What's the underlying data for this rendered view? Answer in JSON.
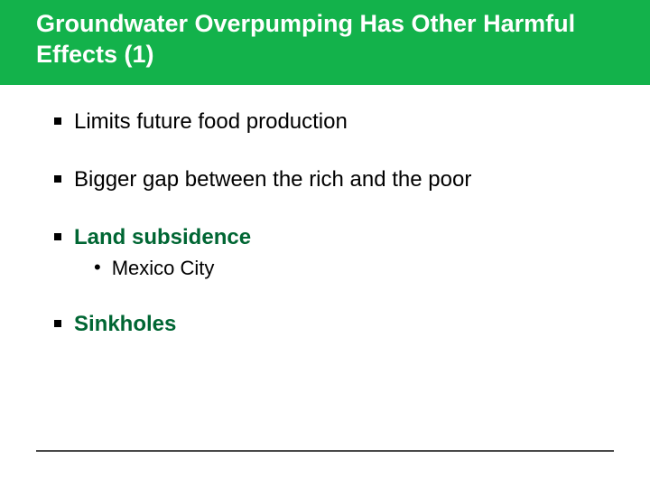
{
  "colors": {
    "title_bg": "#13b24b",
    "title_text": "#ffffff",
    "bullet": "#000000",
    "accent": "#006633",
    "footer_line": "#4a4a4a",
    "background": "#ffffff"
  },
  "title": "Groundwater Overpumping Has Other Harmful Effects (1)",
  "fonts": {
    "title_size": 27,
    "bullet_size": 24,
    "sub_size": 22
  },
  "bullets": [
    {
      "text": "Limits future food production",
      "bold": false,
      "accent": false
    },
    {
      "text": "Bigger gap between the rich and the poor",
      "bold": false,
      "accent": false
    },
    {
      "text": "Land subsidence",
      "bold": true,
      "accent": true,
      "sub": [
        {
          "text": "Mexico City"
        }
      ]
    },
    {
      "text": "Sinkholes",
      "bold": true,
      "accent": true
    }
  ]
}
